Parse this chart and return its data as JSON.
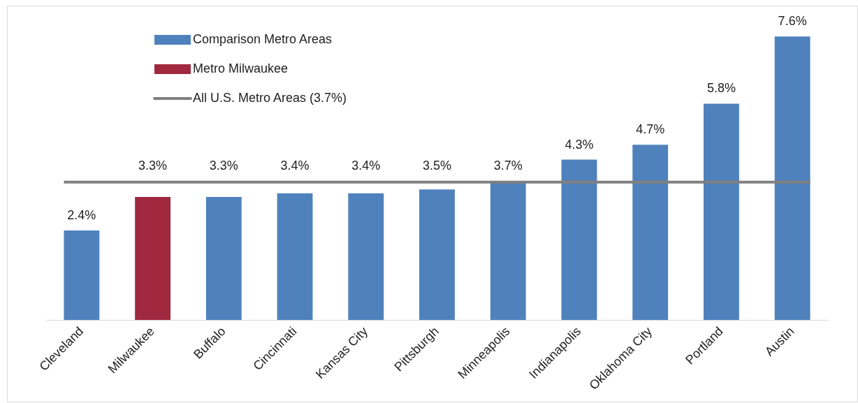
{
  "chart_data": {
    "type": "bar",
    "stacked": true,
    "legend": "top left",
    "grid": false,
    "categories": [
      "Cleveland",
      "Milwaukee",
      "Buffalo",
      "Cincinnati",
      "Kansas City",
      "Pittsburgh",
      "Minneapolis",
      "Indianapolis",
      "Oklahoma City",
      "Portland",
      "Austin"
    ],
    "series": [
      {
        "name": "Comparison Metro Areas",
        "color": "#4f81bd",
        "values": [
          2.4,
          null,
          3.3,
          3.4,
          3.4,
          3.5,
          3.7,
          4.3,
          4.7,
          5.8,
          7.6
        ],
        "value_labels": [
          "2.4%",
          null,
          "3.3%",
          "3.4%",
          "3.4%",
          "3.5%",
          "3.7%",
          "4.3%",
          "4.7%",
          "5.8%",
          "7.6%"
        ]
      },
      {
        "name": "Metro Milwaukee",
        "color": "#a0283f",
        "values": [
          null,
          3.3,
          null,
          null,
          null,
          null,
          null,
          null,
          null,
          null,
          null
        ],
        "value_labels": [
          null,
          "3.3%",
          null,
          null,
          null,
          null,
          null,
          null,
          null,
          null,
          null
        ]
      }
    ],
    "ref_lines": [
      {
        "axis": "y",
        "value": 3.7,
        "label": "All U.S. Metro Areas (3.7%)",
        "color": "#808080"
      }
    ]
  }
}
